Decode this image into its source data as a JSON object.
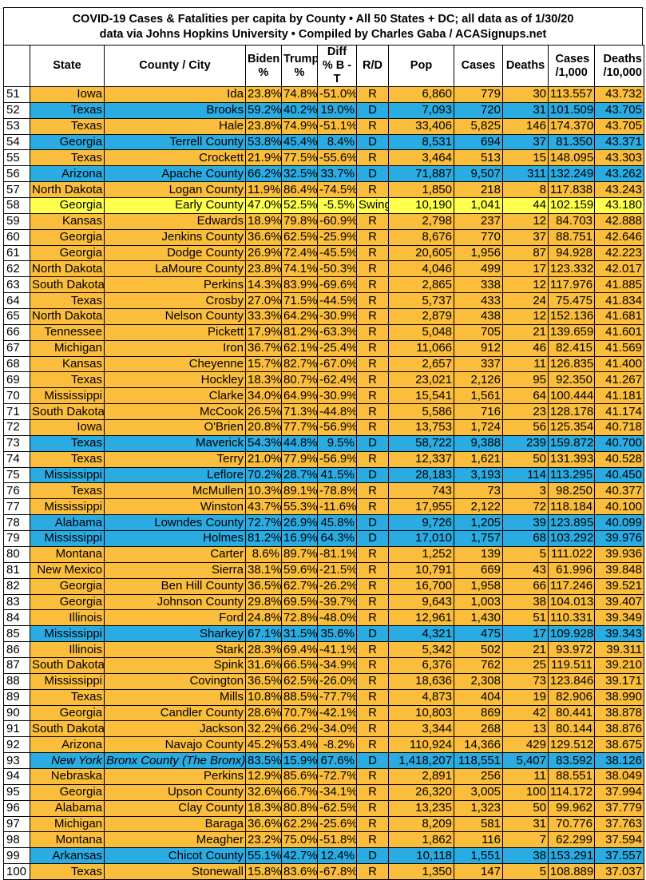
{
  "title": {
    "line1": "COVID-19 Cases & Fatalities per capita by County • All 50 States + DC; all data as of 1/30/20",
    "line2": "data via Johns Hopkins University • Compiled by Charles Gaba / ACASignups.net"
  },
  "colors": {
    "R": "#FBBD3C",
    "D": "#2AABE2",
    "Swing": "#FFFF4D"
  },
  "headers": [
    "",
    "State",
    "County / City",
    "Biden %",
    "Trump %",
    "Diff % B - T",
    "R/D",
    "Pop",
    "Cases",
    "Deaths",
    "Cases /1,000",
    "Deaths /10,000"
  ],
  "rows": [
    [
      "51",
      "Iowa",
      "Ida",
      "23.8%",
      "74.8%",
      "-51.0%",
      "R",
      "6,860",
      "779",
      "30",
      "113.557",
      "43.732"
    ],
    [
      "52",
      "Texas",
      "Brooks",
      "59.2%",
      "40.2%",
      "19.0%",
      "D",
      "7,093",
      "720",
      "31",
      "101.509",
      "43.705"
    ],
    [
      "53",
      "Texas",
      "Hale",
      "23.8%",
      "74.9%",
      "-51.1%",
      "R",
      "33,406",
      "5,825",
      "146",
      "174.370",
      "43.705"
    ],
    [
      "54",
      "Georgia",
      "Terrell County",
      "53.8%",
      "45.4%",
      "8.4%",
      "D",
      "8,531",
      "694",
      "37",
      "81.350",
      "43.371"
    ],
    [
      "55",
      "Texas",
      "Crockett",
      "21.9%",
      "77.5%",
      "-55.6%",
      "R",
      "3,464",
      "513",
      "15",
      "148.095",
      "43.303"
    ],
    [
      "56",
      "Arizona",
      "Apache County",
      "66.2%",
      "32.5%",
      "33.7%",
      "D",
      "71,887",
      "9,507",
      "311",
      "132.249",
      "43.262"
    ],
    [
      "57",
      "North Dakota",
      "Logan County",
      "11.9%",
      "86.4%",
      "-74.5%",
      "R",
      "1,850",
      "218",
      "8",
      "117.838",
      "43.243"
    ],
    [
      "58",
      "Georgia",
      "Early County",
      "47.0%",
      "52.5%",
      "-5.5%",
      "Swing",
      "10,190",
      "1,041",
      "44",
      "102.159",
      "43.180"
    ],
    [
      "59",
      "Kansas",
      "Edwards",
      "18.9%",
      "79.8%",
      "-60.9%",
      "R",
      "2,798",
      "237",
      "12",
      "84.703",
      "42.888"
    ],
    [
      "60",
      "Georgia",
      "Jenkins County",
      "36.6%",
      "62.5%",
      "-25.9%",
      "R",
      "8,676",
      "770",
      "37",
      "88.751",
      "42.646"
    ],
    [
      "61",
      "Georgia",
      "Dodge County",
      "26.9%",
      "72.4%",
      "-45.5%",
      "R",
      "20,605",
      "1,956",
      "87",
      "94.928",
      "42.223"
    ],
    [
      "62",
      "North Dakota",
      "LaMoure County",
      "23.8%",
      "74.1%",
      "-50.3%",
      "R",
      "4,046",
      "499",
      "17",
      "123.332",
      "42.017"
    ],
    [
      "63",
      "South Dakota",
      "Perkins",
      "14.3%",
      "83.9%",
      "-69.6%",
      "R",
      "2,865",
      "338",
      "12",
      "117.976",
      "41.885"
    ],
    [
      "64",
      "Texas",
      "Crosby",
      "27.0%",
      "71.5%",
      "-44.5%",
      "R",
      "5,737",
      "433",
      "24",
      "75.475",
      "41.834"
    ],
    [
      "65",
      "North Dakota",
      "Nelson County",
      "33.3%",
      "64.2%",
      "-30.9%",
      "R",
      "2,879",
      "438",
      "12",
      "152.136",
      "41.681"
    ],
    [
      "66",
      "Tennessee",
      "Pickett",
      "17.9%",
      "81.2%",
      "-63.3%",
      "R",
      "5,048",
      "705",
      "21",
      "139.659",
      "41.601"
    ],
    [
      "67",
      "Michigan",
      "Iron",
      "36.7%",
      "62.1%",
      "-25.4%",
      "R",
      "11,066",
      "912",
      "46",
      "82.415",
      "41.569"
    ],
    [
      "68",
      "Kansas",
      "Cheyenne",
      "15.7%",
      "82.7%",
      "-67.0%",
      "R",
      "2,657",
      "337",
      "11",
      "126.835",
      "41.400"
    ],
    [
      "69",
      "Texas",
      "Hockley",
      "18.3%",
      "80.7%",
      "-62.4%",
      "R",
      "23,021",
      "2,126",
      "95",
      "92.350",
      "41.267"
    ],
    [
      "70",
      "Mississippi",
      "Clarke",
      "34.0%",
      "64.9%",
      "-30.9%",
      "R",
      "15,541",
      "1,561",
      "64",
      "100.444",
      "41.181"
    ],
    [
      "71",
      "South Dakota",
      "McCook",
      "26.5%",
      "71.3%",
      "-44.8%",
      "R",
      "5,586",
      "716",
      "23",
      "128.178",
      "41.174"
    ],
    [
      "72",
      "Iowa",
      "O'Brien",
      "20.8%",
      "77.7%",
      "-56.9%",
      "R",
      "13,753",
      "1,724",
      "56",
      "125.354",
      "40.718"
    ],
    [
      "73",
      "Texas",
      "Maverick",
      "54.3%",
      "44.8%",
      "9.5%",
      "D",
      "58,722",
      "9,388",
      "239",
      "159.872",
      "40.700"
    ],
    [
      "74",
      "Texas",
      "Terry",
      "21.0%",
      "77.9%",
      "-56.9%",
      "R",
      "12,337",
      "1,621",
      "50",
      "131.393",
      "40.528"
    ],
    [
      "75",
      "Mississippi",
      "Leflore",
      "70.2%",
      "28.7%",
      "41.5%",
      "D",
      "28,183",
      "3,193",
      "114",
      "113.295",
      "40.450"
    ],
    [
      "76",
      "Texas",
      "McMullen",
      "10.3%",
      "89.1%",
      "-78.8%",
      "R",
      "743",
      "73",
      "3",
      "98.250",
      "40.377"
    ],
    [
      "77",
      "Mississippi",
      "Winston",
      "43.7%",
      "55.3%",
      "-11.6%",
      "R",
      "17,955",
      "2,122",
      "72",
      "118.184",
      "40.100"
    ],
    [
      "78",
      "Alabama",
      "Lowndes County",
      "72.7%",
      "26.9%",
      "45.8%",
      "D",
      "9,726",
      "1,205",
      "39",
      "123.895",
      "40.099"
    ],
    [
      "79",
      "Mississippi",
      "Holmes",
      "81.2%",
      "16.9%",
      "64.3%",
      "D",
      "17,010",
      "1,757",
      "68",
      "103.292",
      "39.976"
    ],
    [
      "80",
      "Montana",
      "Carter",
      "8.6%",
      "89.7%",
      "-81.1%",
      "R",
      "1,252",
      "139",
      "5",
      "111.022",
      "39.936"
    ],
    [
      "81",
      "New Mexico",
      "Sierra",
      "38.1%",
      "59.6%",
      "-21.5%",
      "R",
      "10,791",
      "669",
      "43",
      "61.996",
      "39.848"
    ],
    [
      "82",
      "Georgia",
      "Ben Hill County",
      "36.5%",
      "62.7%",
      "-26.2%",
      "R",
      "16,700",
      "1,958",
      "66",
      "117.246",
      "39.521"
    ],
    [
      "83",
      "Georgia",
      "Johnson County",
      "29.8%",
      "69.5%",
      "-39.7%",
      "R",
      "9,643",
      "1,003",
      "38",
      "104.013",
      "39.407"
    ],
    [
      "84",
      "Illinois",
      "Ford",
      "24.8%",
      "72.8%",
      "-48.0%",
      "R",
      "12,961",
      "1,430",
      "51",
      "110.331",
      "39.349"
    ],
    [
      "85",
      "Mississippi",
      "Sharkey",
      "67.1%",
      "31.5%",
      "35.6%",
      "D",
      "4,321",
      "475",
      "17",
      "109.928",
      "39.343"
    ],
    [
      "86",
      "Illinois",
      "Stark",
      "28.3%",
      "69.4%",
      "-41.1%",
      "R",
      "5,342",
      "502",
      "21",
      "93.972",
      "39.311"
    ],
    [
      "87",
      "South Dakota",
      "Spink",
      "31.6%",
      "66.5%",
      "-34.9%",
      "R",
      "6,376",
      "762",
      "25",
      "119.511",
      "39.210"
    ],
    [
      "88",
      "Mississippi",
      "Covington",
      "36.5%",
      "62.5%",
      "-26.0%",
      "R",
      "18,636",
      "2,308",
      "73",
      "123.846",
      "39.171"
    ],
    [
      "89",
      "Texas",
      "Mills",
      "10.8%",
      "88.5%",
      "-77.7%",
      "R",
      "4,873",
      "404",
      "19",
      "82.906",
      "38.990"
    ],
    [
      "90",
      "Georgia",
      "Candler County",
      "28.6%",
      "70.7%",
      "-42.1%",
      "R",
      "10,803",
      "869",
      "42",
      "80.441",
      "38.878"
    ],
    [
      "91",
      "South Dakota",
      "Jackson",
      "32.2%",
      "66.2%",
      "-34.0%",
      "R",
      "3,344",
      "268",
      "13",
      "80.144",
      "38.876"
    ],
    [
      "92",
      "Arizona",
      "Navajo County",
      "45.2%",
      "53.4%",
      "-8.2%",
      "R",
      "110,924",
      "14,366",
      "429",
      "129.512",
      "38.675"
    ],
    [
      "93",
      "New York",
      "Bronx County (The Bronx)",
      "83.5%",
      "15.9%",
      "67.6%",
      "D",
      "1,418,207",
      "118,551",
      "5,407",
      "83.592",
      "38.126"
    ],
    [
      "94",
      "Nebraska",
      "Perkins",
      "12.9%",
      "85.6%",
      "-72.7%",
      "R",
      "2,891",
      "256",
      "11",
      "88.551",
      "38.049"
    ],
    [
      "95",
      "Georgia",
      "Upson County",
      "32.6%",
      "66.7%",
      "-34.1%",
      "R",
      "26,320",
      "3,005",
      "100",
      "114.172",
      "37.994"
    ],
    [
      "96",
      "Alabama",
      "Clay County",
      "18.3%",
      "80.8%",
      "-62.5%",
      "R",
      "13,235",
      "1,323",
      "50",
      "99.962",
      "37.779"
    ],
    [
      "97",
      "Michigan",
      "Baraga",
      "36.6%",
      "62.2%",
      "-25.6%",
      "R",
      "8,209",
      "581",
      "31",
      "70.776",
      "37.763"
    ],
    [
      "98",
      "Montana",
      "Meagher",
      "23.2%",
      "75.0%",
      "-51.8%",
      "R",
      "1,862",
      "116",
      "7",
      "62.299",
      "37.594"
    ],
    [
      "99",
      "Arkansas",
      "Chicot County",
      "55.1%",
      "42.7%",
      "12.4%",
      "D",
      "10,118",
      "1,551",
      "38",
      "153.291",
      "37.557"
    ],
    [
      "100",
      "Texas",
      "Stonewall",
      "15.8%",
      "83.6%",
      "-67.8%",
      "R",
      "1,350",
      "147",
      "5",
      "108.889",
      "37.037"
    ]
  ],
  "italic_rows": [
    "93"
  ]
}
